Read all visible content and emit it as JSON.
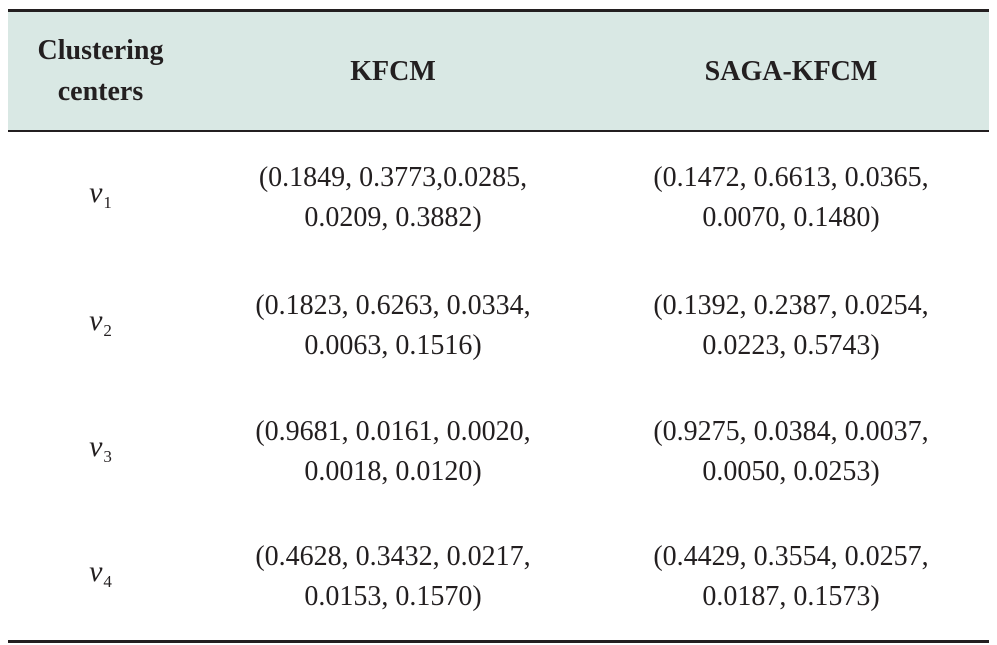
{
  "header": {
    "col1": [
      "Clustering",
      "centers"
    ],
    "col2": "KFCM",
    "col3": "SAGA-KFCM"
  },
  "rows": [
    {
      "var": "v",
      "sub": "1",
      "kfcm": [
        "(0.1849, 0.3773,0.0285,",
        "0.0209, 0.3882)"
      ],
      "saga": [
        "(0.1472, 0.6613, 0.0365,",
        "0.0070, 0.1480)"
      ]
    },
    {
      "var": "v",
      "sub": "2",
      "kfcm": [
        "(0.1823, 0.6263, 0.0334,",
        "0.0063, 0.1516)"
      ],
      "saga": [
        "(0.1392, 0.2387, 0.0254,",
        "0.0223, 0.5743)"
      ]
    },
    {
      "var": "v",
      "sub": "3",
      "kfcm": [
        "(0.9681, 0.0161, 0.0020,",
        "0.0018, 0.0120)"
      ],
      "saga": [
        "(0.9275, 0.0384, 0.0037,",
        "0.0050, 0.0253)"
      ]
    },
    {
      "var": "v",
      "sub": "4",
      "kfcm": [
        "(0.4628, 0.3432, 0.0217,",
        "0.0153, 0.1570)"
      ],
      "saga": [
        "(0.4429, 0.3554, 0.0257,",
        "0.0187, 0.1573)"
      ]
    }
  ]
}
